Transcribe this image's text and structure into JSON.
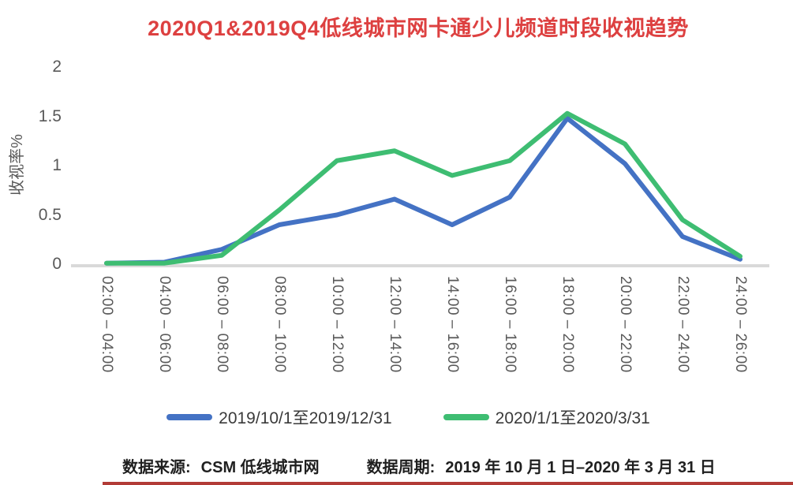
{
  "page": {
    "footer": {
      "source_label": "数据来源:",
      "source_value": "CSM 低线城市网",
      "period_label": "数据周期:",
      "period_value": "2019 年 10 月 1 日–2020 年 3 月 31 日"
    },
    "accent_underline_color": "#b23b36"
  },
  "chart_data": {
    "type": "line",
    "title": "2020Q1&2019Q4低线城市网卡通少儿频道时段收视趋势",
    "title_color": "#dd4040",
    "xlabel": "",
    "ylabel": "收视率%",
    "ylim": [
      0,
      2
    ],
    "yticks": [
      0,
      0.5,
      1,
      1.5,
      2
    ],
    "grid": false,
    "legend_position": "bottom",
    "axis_line_color": "#d9d9d9",
    "tick_text_color": "#595959",
    "categories": [
      "02:00 – 04:00",
      "04:00 – 06:00",
      "06:00 – 08:00",
      "08:00 – 10:00",
      "10:00 – 12:00",
      "12:00 – 14:00",
      "14:00 – 16:00",
      "16:00 – 18:00",
      "18:00 – 20:00",
      "20:00 – 22:00",
      "22:00 – 24:00",
      "24:00 – 26:00"
    ],
    "series": [
      {
        "name": "2019/10/1至2019/12/31",
        "color": "#4472c4",
        "values": [
          0.01,
          0.02,
          0.15,
          0.4,
          0.5,
          0.66,
          0.4,
          0.68,
          1.48,
          1.02,
          0.28,
          0.05
        ]
      },
      {
        "name": "2020/1/1至2020/3/31",
        "color": "#3ebd72",
        "values": [
          0.01,
          0.01,
          0.09,
          0.55,
          1.05,
          1.15,
          0.9,
          1.05,
          1.53,
          1.22,
          0.45,
          0.08
        ]
      }
    ]
  }
}
